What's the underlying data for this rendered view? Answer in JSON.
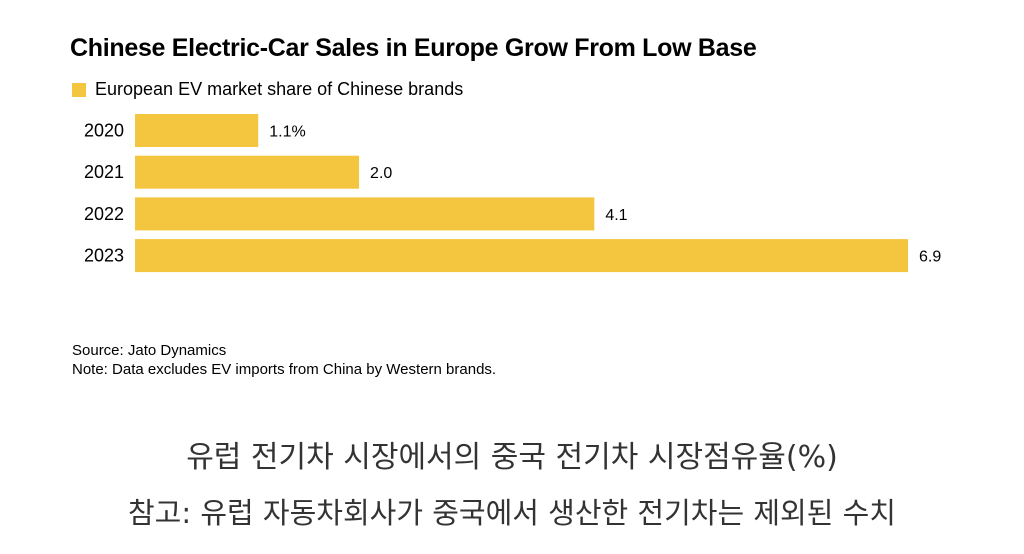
{
  "chart_data": {
    "type": "bar",
    "orientation": "horizontal",
    "title": "Chinese Electric-Car Sales in Europe Grow From Low Base",
    "legend": "European EV market share of Chinese brands",
    "categories": [
      "2020",
      "2021",
      "2022",
      "2023"
    ],
    "values": [
      1.1,
      2.0,
      4.1,
      6.9
    ],
    "value_labels": [
      "1.1%",
      "2.0",
      "4.1",
      "6.9"
    ],
    "xlim": [
      0,
      6.9
    ],
    "grid": false,
    "series_color": "#F4C53E"
  },
  "source": "Source: Jato Dynamics",
  "note": "Note: Data excludes EV imports from China by Western brands.",
  "caption": {
    "line1": "유럽 전기차 시장에서의 중국 전기차 시장점유율(%)",
    "line2": "참고: 유럽 자동차회사가 중국에서 생산한 전기차는 제외된 수치"
  }
}
